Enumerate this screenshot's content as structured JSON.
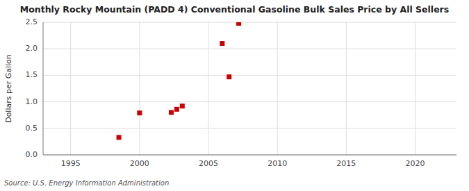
{
  "chart_data": {
    "type": "scatter",
    "title": "Monthly Rocky Mountain (PADD 4) Conventional Gasoline Bulk Sales Price by All Sellers",
    "ylabel": "Dollars per Gallon",
    "annotations": [
      "Source: U.S. Energy Information Administration"
    ],
    "x": [
      1998.5,
      2000.0,
      2002.3,
      2002.7,
      2003.1,
      2006.0,
      2006.5,
      2007.2
    ],
    "values": [
      0.33,
      0.79,
      0.8,
      0.86,
      0.92,
      2.1,
      1.47,
      2.48
    ],
    "color": "#cc0000",
    "marker": "square",
    "xlim": [
      1993,
      2023
    ],
    "ylim": [
      0.0,
      2.5
    ],
    "xticks": [
      1995,
      2000,
      2005,
      2010,
      2015,
      2020
    ],
    "yticks": [
      {
        "value": 0.0,
        "label": "0.0"
      },
      0.5,
      {
        "value": 1.0,
        "label": "1.0"
      },
      1.5,
      {
        "value": 2.0,
        "label": "2.0"
      },
      2.5
    ],
    "grid": true
  }
}
